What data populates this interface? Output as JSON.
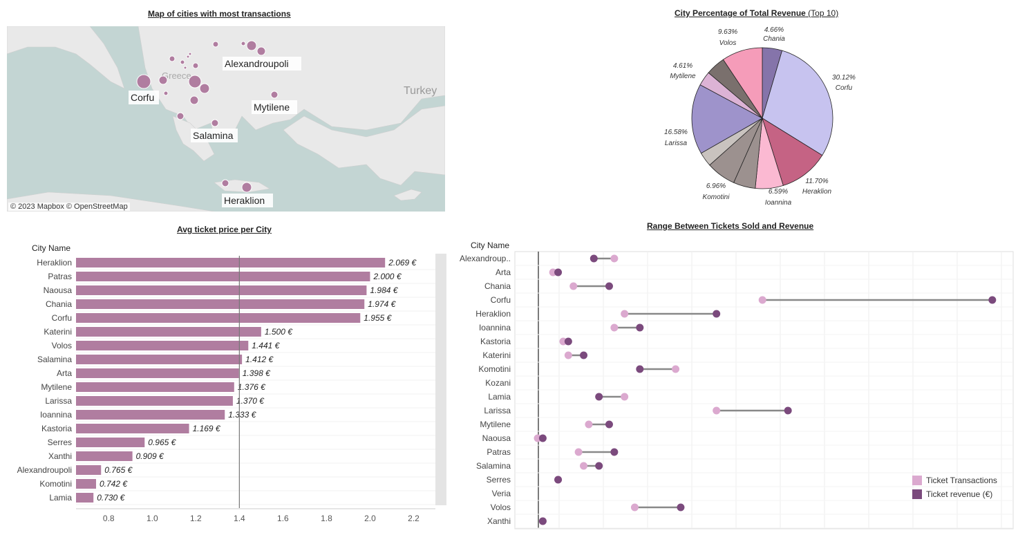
{
  "map": {
    "title": "Map of cities with most transactions",
    "country_label": "Greece",
    "neighbor_label": "Turkey",
    "attribution": "© 2023 Mapbox  © OpenStreetMap",
    "labels": [
      "Alexandroupoli",
      "Corfu",
      "Mytilene",
      "Salamina",
      "Heraklion"
    ]
  },
  "pie": {
    "title_main": "City Percentage of Total Revenue",
    "title_sub": "(Top 10)"
  },
  "bar_chart": {
    "title": "Avg ticket price per City",
    "header": "City Name"
  },
  "range_chart": {
    "title": "Range Between Tickets Sold and Revenue",
    "header": "City Name",
    "legend": [
      {
        "label": "Ticket Transactions",
        "color": "#dba9cf"
      },
      {
        "label": "Ticket revenue (€)",
        "color": "#7b4a7d"
      }
    ]
  },
  "chart_data": [
    {
      "type": "map",
      "cities": [
        {
          "name": "Corfu",
          "labeled": true
        },
        {
          "name": "Alexandroupoli",
          "labeled": true
        },
        {
          "name": "Mytilene",
          "labeled": true
        },
        {
          "name": "Salamina",
          "labeled": true
        },
        {
          "name": "Heraklion",
          "labeled": true
        }
      ]
    },
    {
      "type": "pie",
      "title": "City Percentage of Total Revenue (Top 10)",
      "slices": [
        {
          "label": "Chania",
          "value": 4.66,
          "text": "4.66%",
          "color": "#8574aa"
        },
        {
          "label": "Corfu",
          "value": 30.12,
          "text": "30.12%",
          "color": "#c7c3ef"
        },
        {
          "label": "Heraklion",
          "value": 11.7,
          "text": "11.70%",
          "color": "#c56384"
        },
        {
          "label": "Ioannina",
          "value": 6.59,
          "text": "6.59%",
          "color": "#fbb9d2"
        },
        {
          "label": "",
          "value": 5.2,
          "text": "",
          "color": "#9c918f"
        },
        {
          "label": "Komotini",
          "value": 6.96,
          "text": "6.96%",
          "color": "#9c918f"
        },
        {
          "label": "",
          "value": 3.4,
          "text": "",
          "color": "#c9c3bf"
        },
        {
          "label": "Larissa",
          "value": 16.58,
          "text": "16.58%",
          "color": "#9e93cb"
        },
        {
          "label": "",
          "value": 3.4,
          "text": "",
          "color": "#dcb3d5"
        },
        {
          "label": "Mytilene",
          "value": 4.61,
          "text": "4.61%",
          "color": "#7a706d"
        },
        {
          "label": "Volos",
          "value": 9.63,
          "text": "9.63%",
          "color": "#f59cb9"
        }
      ]
    },
    {
      "type": "bar",
      "title": "Avg ticket price per City",
      "categories": [
        "Heraklion",
        "Patras",
        "Naousa",
        "Chania",
        "Corfu",
        "Katerini",
        "Volos",
        "Salamina",
        "Arta",
        "Mytilene",
        "Larissa",
        "Ioannina",
        "Kastoria",
        "Serres",
        "Xanthi",
        "Alexandroupoli",
        "Komotini",
        "Lamia"
      ],
      "values": [
        2.069,
        2.0,
        1.984,
        1.974,
        1.955,
        1.5,
        1.441,
        1.412,
        1.398,
        1.376,
        1.37,
        1.333,
        1.169,
        0.965,
        0.909,
        0.765,
        0.742,
        0.73
      ],
      "value_labels": [
        "2.069 €",
        "2.000 €",
        "1.984 €",
        "1.974 €",
        "1.955 €",
        "1.500 €",
        "1.441 €",
        "1.412 €",
        "1.398 €",
        "1.376 €",
        "1.370 €",
        "1.333 €",
        "1.169 €",
        "0.965 €",
        "0.909 €",
        "0.765 €",
        "0.742 €",
        "0.730 €"
      ],
      "xlim": [
        0.65,
        2.3
      ],
      "xticks": [
        "0.8",
        "1.0",
        "1.2",
        "1.4",
        "1.6",
        "1.8",
        "2.0",
        "2.2"
      ],
      "reference_line": 1.4,
      "color": "#b07da0"
    },
    {
      "type": "dumbbell",
      "title": "Range Between Tickets Sold and Revenue",
      "categories": [
        "Alexandroup..",
        "Arta",
        "Chania",
        "Corfu",
        "Heraklion",
        "Ioannina",
        "Kastoria",
        "Katerini",
        "Komotini",
        "Kozani",
        "Lamia",
        "Larissa",
        "Mytilene",
        "Naousa",
        "Patras",
        "Salamina",
        "Serres",
        "Veria",
        "Volos",
        "Xanthi"
      ],
      "series": [
        {
          "name": "Ticket Transactions",
          "values": [
            0.15,
            0.03,
            0.07,
            0.44,
            0.17,
            0.15,
            0.05,
            0.06,
            0.27,
            null,
            0.17,
            0.35,
            0.1,
            0.0,
            0.08,
            0.09,
            0.04,
            null,
            0.19,
            0.01
          ]
        },
        {
          "name": "Ticket revenue (€)",
          "values": [
            0.11,
            0.04,
            0.14,
            0.89,
            0.35,
            0.2,
            0.06,
            0.09,
            0.2,
            null,
            0.12,
            0.49,
            0.14,
            0.01,
            0.15,
            0.12,
            0.04,
            null,
            0.28,
            0.01
          ]
        }
      ]
    }
  ]
}
